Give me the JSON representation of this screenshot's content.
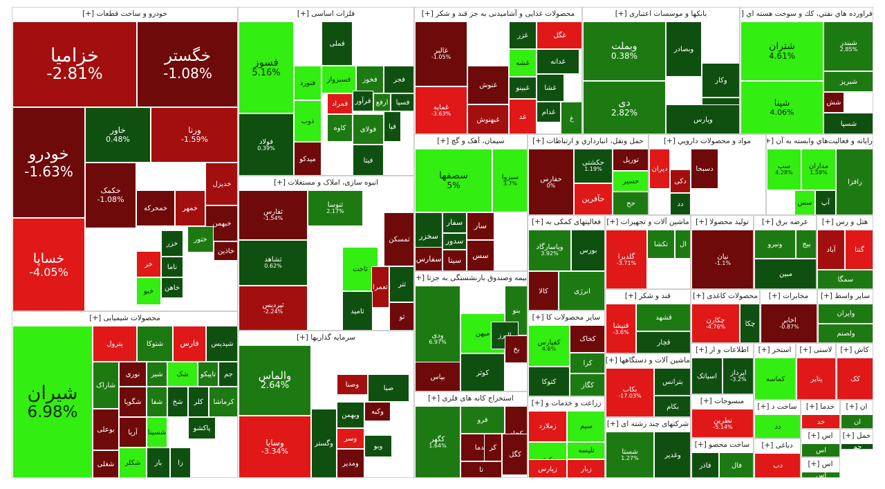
{
  "colors": {
    "deep_red": "#6e0a0a",
    "red": "#a30f0f",
    "bright_red": "#e01818",
    "dark_green": "#0f5010",
    "green": "#1d7a12",
    "bright_green": "#33ee11"
  },
  "sectors": [
    {
      "title": "خودرو و ساخت قطعات [+]",
      "tiles": [
        {
          "symbol": "خزامیا",
          "pct": "-2.81%"
        },
        {
          "symbol": "خگستر",
          "pct": "-1.08%"
        },
        {
          "symbol": "خودرو",
          "pct": "-1.63%"
        },
        {
          "symbol": "خاور",
          "pct": "0.48%"
        },
        {
          "symbol": "ورنا",
          "pct": "-1.59%"
        },
        {
          "symbol": "خساپا",
          "pct": "-4.05%"
        },
        {
          "symbol": "خکمک",
          "pct": "-1.08%"
        },
        {
          "symbol": "خدیزل",
          "pct": ""
        },
        {
          "symbol": "خمحرکه",
          "pct": ""
        },
        {
          "symbol": "خمهر",
          "pct": ""
        },
        {
          "symbol": "خبهمن",
          "pct": ""
        },
        {
          "symbol": "خزر",
          "pct": ""
        },
        {
          "symbol": "ختور",
          "pct": ""
        },
        {
          "symbol": "خاذین",
          "pct": ""
        },
        {
          "symbol": "ناما",
          "pct": ""
        },
        {
          "symbol": "خاهن",
          "pct": ""
        },
        {
          "symbol": "خر",
          "pct": ""
        },
        {
          "symbol": "خبو",
          "pct": ""
        }
      ]
    },
    {
      "title": "محصولات شیمیایی [+]",
      "tiles": [
        {
          "symbol": "شیران",
          "pct": "6.98%"
        },
        {
          "symbol": "پترول",
          "pct": ""
        },
        {
          "symbol": "شتوکا",
          "pct": ""
        },
        {
          "symbol": "فارس",
          "pct": ""
        },
        {
          "symbol": "شپدیس",
          "pct": ""
        },
        {
          "symbol": "شاراک",
          "pct": ""
        },
        {
          "symbol": "نوری",
          "pct": ""
        },
        {
          "symbol": "شیر",
          "pct": ""
        },
        {
          "symbol": "شک",
          "pct": ""
        },
        {
          "symbol": "تاپیکو",
          "pct": ""
        },
        {
          "symbol": "جم",
          "pct": ""
        },
        {
          "symbol": "بوعلی",
          "pct": ""
        },
        {
          "symbol": "شگویا",
          "pct": ""
        },
        {
          "symbol": "شفا",
          "pct": ""
        },
        {
          "symbol": "شخ",
          "pct": ""
        },
        {
          "symbol": "کلر",
          "pct": ""
        },
        {
          "symbol": "کرماشا",
          "pct": ""
        },
        {
          "symbol": "شغلی",
          "pct": ""
        },
        {
          "symbol": "آریا",
          "pct": ""
        },
        {
          "symbol": "شسینا",
          "pct": ""
        },
        {
          "symbol": "پاکشو",
          "pct": ""
        },
        {
          "symbol": "شکلر",
          "pct": ""
        },
        {
          "symbol": "بار",
          "pct": ""
        },
        {
          "symbol": "زا",
          "pct": ""
        }
      ]
    },
    {
      "title": "فلزات اساسی [+]",
      "tiles": [
        {
          "symbol": "فسوز",
          "pct": "5.16%"
        },
        {
          "symbol": "فولاد",
          "pct": "0.39%"
        },
        {
          "symbol": "فنورد",
          "pct": ""
        },
        {
          "symbol": "ذوب",
          "pct": ""
        },
        {
          "symbol": "میدکو",
          "pct": ""
        },
        {
          "symbol": "فسبزوار",
          "pct": ""
        },
        {
          "symbol": "فخوز",
          "pct": ""
        },
        {
          "symbol": "فجر",
          "pct": ""
        },
        {
          "symbol": "فملی",
          "pct": ""
        },
        {
          "symbol": "فرآور",
          "pct": ""
        },
        {
          "symbol": "ارفع",
          "pct": ""
        },
        {
          "symbol": "فسپا",
          "pct": ""
        },
        {
          "symbol": "فمراد",
          "pct": ""
        },
        {
          "symbol": "کاوه",
          "pct": ""
        },
        {
          "symbol": "فولای",
          "pct": ""
        },
        {
          "symbol": "فیتا",
          "pct": ""
        },
        {
          "symbol": "فپا",
          "pct": ""
        }
      ]
    },
    {
      "title": "انبوه سازی، املاک و مستغلات [+]",
      "tiles": [
        {
          "symbol": "ثفارس",
          "pct": "-1.54%"
        },
        {
          "symbol": "ثشاهد",
          "pct": "0.62%"
        },
        {
          "symbol": "ثپردیس",
          "pct": "-2.24%"
        },
        {
          "symbol": "ثنوسا",
          "pct": "2.17%"
        },
        {
          "symbol": "ثمسکن",
          "pct": ""
        },
        {
          "symbol": "ثاخت",
          "pct": ""
        },
        {
          "symbol": "ثعمرا",
          "pct": ""
        },
        {
          "symbol": "ثامید",
          "pct": ""
        },
        {
          "symbol": "ثتر",
          "pct": ""
        },
        {
          "symbol": "ثو",
          "pct": ""
        }
      ]
    },
    {
      "title": "سرمایه گذاریها [+]",
      "tiles": [
        {
          "symbol": "والماس",
          "pct": "2.64%"
        },
        {
          "symbol": "وسایا",
          "pct": "-3.34%"
        },
        {
          "symbol": "وصنا",
          "pct": ""
        },
        {
          "symbol": "صبا",
          "pct": ""
        },
        {
          "symbol": "وبهمن",
          "pct": ""
        },
        {
          "symbol": "وکبه",
          "pct": ""
        },
        {
          "symbol": "وسر",
          "pct": ""
        },
        {
          "symbol": "وگستر",
          "pct": ""
        },
        {
          "symbol": "ومدیر",
          "pct": ""
        },
        {
          "symbol": "وبو",
          "pct": ""
        }
      ]
    },
    {
      "title": "محصولات غذایی و آشامیدنی به جز قند و شکر [+]",
      "tiles": [
        {
          "symbol": "غالبر",
          "pct": "-1.05%"
        },
        {
          "symbol": "غمایه",
          "pct": "-3.63%"
        },
        {
          "symbol": "غزر",
          "pct": ""
        },
        {
          "symbol": "غگل",
          "pct": ""
        },
        {
          "symbol": "غشه",
          "pct": ""
        },
        {
          "symbol": "غبینو",
          "pct": ""
        },
        {
          "symbol": "غدانه",
          "pct": ""
        },
        {
          "symbol": "غشا",
          "pct": ""
        },
        {
          "symbol": "غنوش",
          "pct": ""
        },
        {
          "symbol": "غبهنوش",
          "pct": ""
        },
        {
          "symbol": "غدام",
          "pct": ""
        },
        {
          "symbol": "غد",
          "pct": ""
        },
        {
          "symbol": "غ",
          "pct": ""
        }
      ]
    },
    {
      "title": "سیمان، آهک و گچ [+]",
      "tiles": [
        {
          "symbol": "سصفها",
          "pct": "5%"
        },
        {
          "symbol": "سبزوا",
          "pct": "3.7%"
        },
        {
          "symbol": "سفار",
          "pct": ""
        },
        {
          "symbol": "سخزر",
          "pct": ""
        },
        {
          "symbol": "سدور",
          "pct": ""
        },
        {
          "symbol": "سفارس",
          "pct": ""
        },
        {
          "symbol": "سیتا",
          "pct": ""
        },
        {
          "symbol": "سار",
          "pct": ""
        },
        {
          "symbol": "سس",
          "pct": ""
        }
      ]
    },
    {
      "title": "بیمه وصندوق بازنشستگی به جزتا [+]",
      "tiles": [
        {
          "symbol": "ودی",
          "pct": "6.97%"
        },
        {
          "symbol": "بنو",
          "pct": ""
        },
        {
          "symbol": "میهن",
          "pct": ""
        },
        {
          "symbol": "البرز",
          "pct": ""
        },
        {
          "symbol": "کوثر",
          "pct": ""
        },
        {
          "symbol": "بخ",
          "pct": ""
        },
        {
          "symbol": "بپاس",
          "pct": ""
        }
      ]
    },
    {
      "title": "استخراج کانه های فلزی [+]",
      "tiles": [
        {
          "symbol": "کگهر",
          "pct": "1.64%"
        },
        {
          "symbol": "فرو",
          "pct": ""
        },
        {
          "symbol": "کچاد",
          "pct": ""
        },
        {
          "symbol": "کدما",
          "pct": ""
        },
        {
          "symbol": "کگل",
          "pct": ""
        },
        {
          "symbol": "کر",
          "pct": ""
        },
        {
          "symbol": "تا",
          "pct": ""
        }
      ]
    },
    {
      "title": "بانکها و موسسات اعتباری [+]",
      "tiles": [
        {
          "symbol": "وبملت",
          "pct": "0.38%"
        },
        {
          "symbol": "دی",
          "pct": "2.82%"
        },
        {
          "symbol": "وبصادر",
          "pct": ""
        },
        {
          "symbol": "وکار",
          "pct": ""
        },
        {
          "symbol": "وپاسار",
          "pct": ""
        },
        {
          "symbol": "وپارس",
          "pct": ""
        }
      ]
    },
    {
      "title": "فراورده هاي نفتي، كك و سوخت هسته اي [+]",
      "tiles": [
        {
          "symbol": "شتران",
          "pct": "4.61%"
        },
        {
          "symbol": "شپنا",
          "pct": "4.06%"
        },
        {
          "symbol": "شبندر",
          "pct": "2.85%"
        },
        {
          "symbol": "شبریز",
          "pct": ""
        },
        {
          "symbol": "شسپا",
          "pct": ""
        },
        {
          "symbol": "شش",
          "pct": ""
        }
      ]
    },
    {
      "title": "حمل ونقل، انبارداري و ارتباطات [+]",
      "tiles": [
        {
          "symbol": "حفارس",
          "pct": "0%"
        },
        {
          "symbol": "حکشتی",
          "pct": "1.19%"
        },
        {
          "symbol": "توریل",
          "pct": ""
        },
        {
          "symbol": "حسیر",
          "pct": ""
        },
        {
          "symbol": "حآفرین",
          "pct": ""
        },
        {
          "symbol": "حح",
          "pct": ""
        }
      ]
    },
    {
      "title": "مواد و محصولات دارويي [+]",
      "tiles": [
        {
          "symbol": "دیران",
          "pct": ""
        },
        {
          "symbol": "دکی",
          "pct": ""
        },
        {
          "symbol": "دد",
          "pct": ""
        },
        {
          "symbol": "دسبحا",
          "pct": ""
        }
      ]
    },
    {
      "title": "رایانه و فعالیت‌هاي وابسته به آن [+]",
      "tiles": [
        {
          "symbol": "سپ",
          "pct": "4.28%"
        },
        {
          "symbol": "مداران",
          "pct": "1.58%"
        },
        {
          "symbol": "آپ",
          "pct": ""
        },
        {
          "symbol": "رافزا",
          "pct": ""
        },
        {
          "symbol": "سس",
          "pct": ""
        }
      ]
    },
    {
      "title": "فعالیتهای کمکی به [+]",
      "tiles": [
        {
          "symbol": "وپاسارگاد",
          "pct": "3.92%"
        },
        {
          "symbol": "بورس",
          "pct": ""
        },
        {
          "symbol": "کالا",
          "pct": ""
        },
        {
          "symbol": "انرژی",
          "pct": ""
        }
      ]
    },
    {
      "title": "ماشین آلات و تجهیزات [+]",
      "tiles": [
        {
          "symbol": "گلدیرا",
          "pct": "-3.71%"
        },
        {
          "symbol": "تکشا",
          "pct": ""
        },
        {
          "symbol": "ال",
          "pct": ""
        }
      ]
    },
    {
      "title": "تولید محصولا [+]",
      "tiles": [
        {
          "symbol": "نیان",
          "pct": "-1.1%"
        }
      ]
    },
    {
      "title": "عرضه برق [+]",
      "tiles": [
        {
          "symbol": "ونیرو",
          "pct": ""
        },
        {
          "symbol": "بیج",
          "pct": ""
        },
        {
          "symbol": "مبین",
          "pct": ""
        }
      ]
    },
    {
      "title": "هتل و رس [+]",
      "tiles": [
        {
          "symbol": "گنتا",
          "pct": ""
        },
        {
          "symbol": "آباد",
          "pct": ""
        },
        {
          "symbol": "سمگا",
          "pct": ""
        }
      ]
    },
    {
      "title": "سایر محصولات کا [+]",
      "tiles": [
        {
          "symbol": "کفپارس",
          "pct": "4.6%"
        },
        {
          "symbol": "کخاک",
          "pct": ""
        },
        {
          "symbol": "کرا",
          "pct": ""
        },
        {
          "symbol": "کگاز",
          "pct": ""
        },
        {
          "symbol": "کتوکا",
          "pct": ""
        },
        {
          "symbol": "کسرا",
          "pct": ""
        }
      ]
    },
    {
      "title": "قند و شکر [+]",
      "tiles": [
        {
          "symbol": "قشهد",
          "pct": ""
        },
        {
          "symbol": "قچار",
          "pct": ""
        },
        {
          "symbol": "قنیشا",
          "pct": "-3.6%"
        }
      ]
    },
    {
      "title": "محصولات کاغذی [+]",
      "tiles": [
        {
          "symbol": "چکارن",
          "pct": "-4.76%"
        },
        {
          "symbol": "چکا",
          "pct": ""
        }
      ]
    },
    {
      "title": "مخابرات [+]",
      "tiles": [
        {
          "symbol": "اخابر",
          "pct": "-0.87%"
        }
      ]
    },
    {
      "title": "سایر واسط [+]",
      "tiles": [
        {
          "symbol": "وایران",
          "pct": ""
        },
        {
          "symbol": "ولصنم",
          "pct": ""
        }
      ]
    },
    {
      "title": "ماشین آلات و دستگاهها [+]",
      "tiles": [
        {
          "symbol": "بکاب",
          "pct": "-17.03%"
        },
        {
          "symbol": "بترانس",
          "pct": ""
        },
        {
          "symbol": "بکام",
          "pct": ""
        }
      ]
    },
    {
      "title": "اطلاعات و ار [+]",
      "tiles": [
        {
          "symbol": "اسیاتک",
          "pct": ""
        },
        {
          "symbol": "اپرداز",
          "pct": "-3.2%"
        }
      ]
    },
    {
      "title": "استخر [+]",
      "tiles": [
        {
          "symbol": "کماسه",
          "pct": ""
        }
      ]
    },
    {
      "title": "لاستی [+]",
      "tiles": [
        {
          "symbol": "پتایر",
          "pct": ""
        }
      ]
    },
    {
      "title": "کاش [+]",
      "tiles": [
        {
          "symbol": "کک",
          "pct": ""
        }
      ]
    },
    {
      "title": "زراعت و خدمات و [+]",
      "tiles": [
        {
          "symbol": "زملارد",
          "pct": ""
        },
        {
          "symbol": "زکوثر",
          "pct": ""
        },
        {
          "symbol": "سیم",
          "pct": ""
        },
        {
          "symbol": "تلیسه",
          "pct": ""
        },
        {
          "symbol": "زبار",
          "pct": ""
        },
        {
          "symbol": "زپارس",
          "pct": ""
        }
      ]
    },
    {
      "title": "شرکتهای چند رشته ای [+]",
      "tiles": [
        {
          "symbol": "وغدیر",
          "pct": ""
        },
        {
          "symbol": "شستا",
          "pct": "1.27%"
        }
      ]
    },
    {
      "title": "منسوجات [+]",
      "tiles": [
        {
          "symbol": "نطرین",
          "pct": "-5.14%"
        }
      ]
    },
    {
      "title": "ساخت محصو [+]",
      "tiles": [
        {
          "symbol": "فاذر",
          "pct": ""
        },
        {
          "symbol": "فال",
          "pct": ""
        }
      ]
    },
    {
      "title": "ساخت د [+]",
      "tiles": [
        {
          "symbol": "دد",
          "pct": ""
        }
      ]
    },
    {
      "title": "خدما [+]",
      "tiles": [
        {
          "symbol": "خد",
          "pct": ""
        }
      ]
    },
    {
      "title": "ان [+]",
      "tiles": [
        {
          "symbol": "ان",
          "pct": ""
        }
      ]
    },
    {
      "title": "اس [+]",
      "tiles": [
        {
          "symbol": "اس",
          "pct": ""
        }
      ]
    },
    {
      "title": "حمل [+]",
      "tiles": [
        {
          "symbol": "حم",
          "pct": ""
        }
      ]
    },
    {
      "title": "دباغی [+]",
      "tiles": [
        {
          "symbol": "دب",
          "pct": ""
        }
      ]
    },
    {
      "title": "اس [+]",
      "tiles": [
        {
          "symbol": "اس",
          "pct": ""
        }
      ]
    }
  ]
}
